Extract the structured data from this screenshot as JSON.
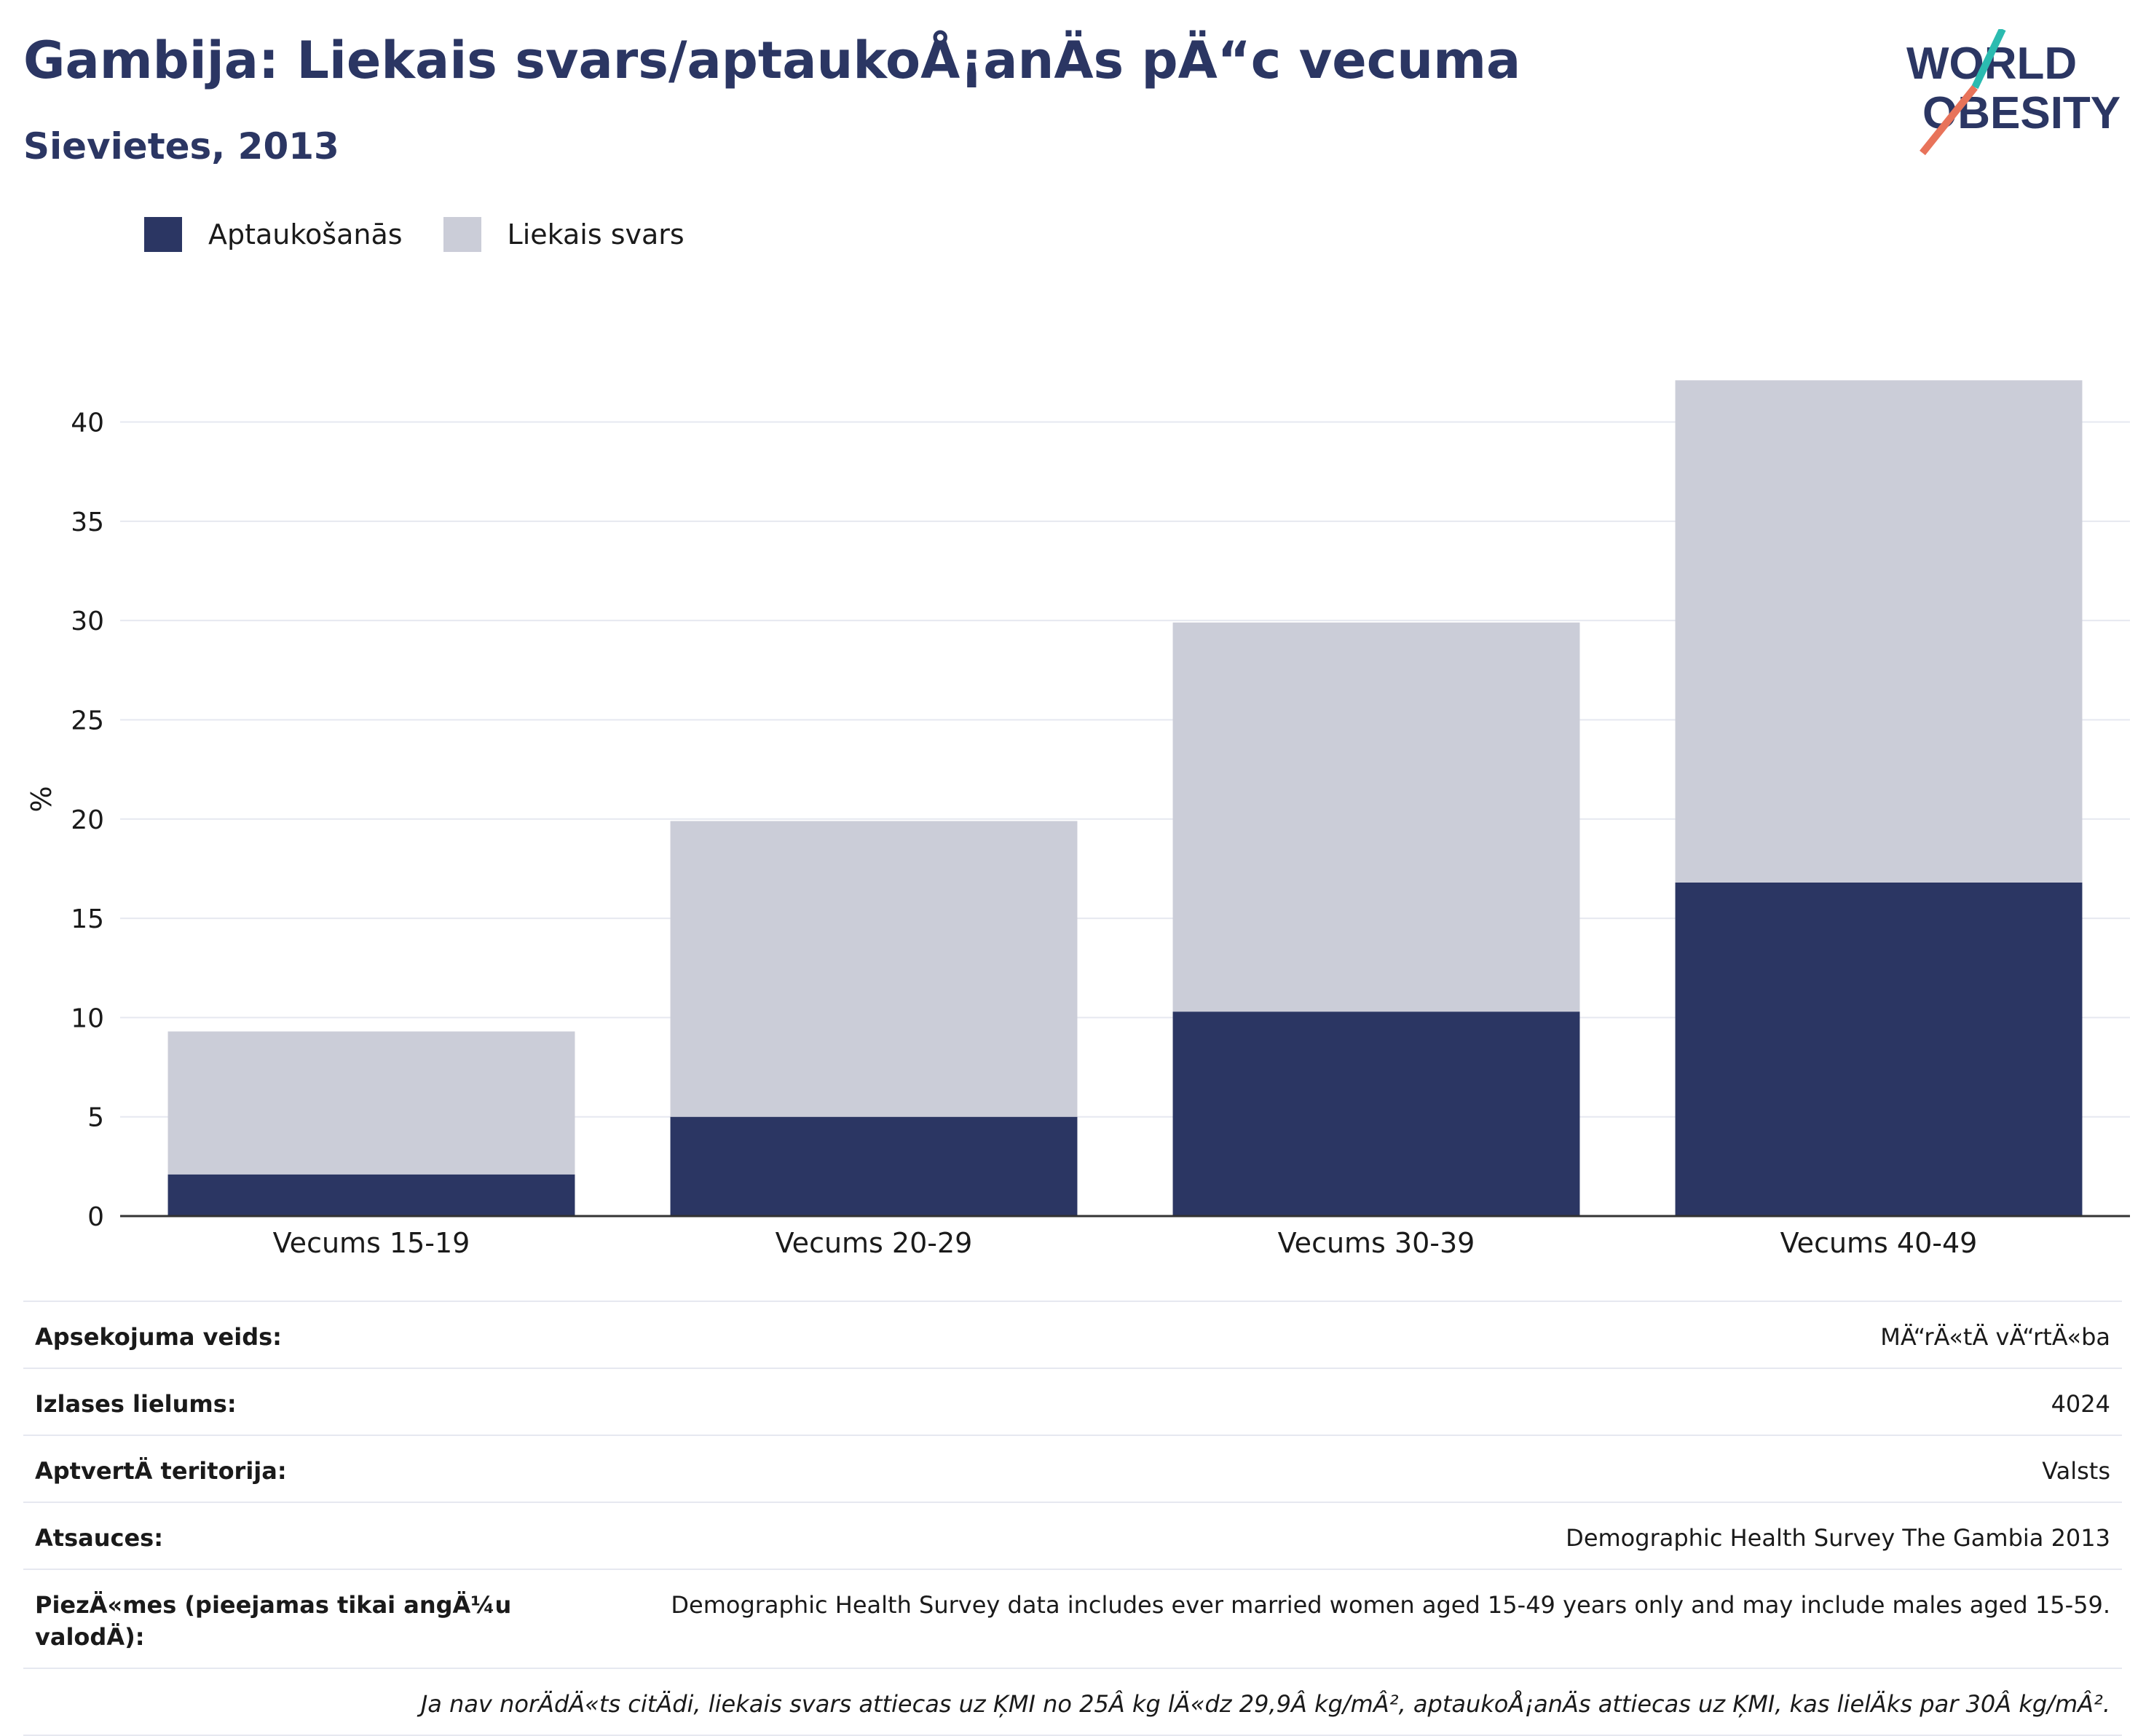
{
  "header": {
    "title": "Gambija: Liekais svars/aptaukoÅ¡anÄs pÄ“c vecuma",
    "subtitle": "Sievietes, 2013"
  },
  "logo": {
    "line1": "WORLD",
    "line2": "OBESITY",
    "accent_colors": [
      "#2bbbb0",
      "#e8735a"
    ],
    "text_color": "#2b3663"
  },
  "legend": [
    {
      "label": "Aptaukošanās",
      "color": "#2b3663"
    },
    {
      "label": "Liekais svars",
      "color": "#cbcdd8"
    }
  ],
  "chart_data": {
    "type": "bar",
    "stacked": true,
    "title": "Gambija: Liekais svars/aptaukoÅ¡anÄs pÄ“c vecuma",
    "subtitle": "Sievietes, 2013",
    "ylabel": "%",
    "xlabel": "",
    "ylim": [
      0,
      42
    ],
    "yticks": [
      0,
      5,
      10,
      15,
      20,
      25,
      30,
      35,
      40
    ],
    "grid": true,
    "legend_position": "top-left",
    "categories": [
      "Vecums 15-19",
      "Vecums 20-29",
      "Vecums 30-39",
      "Vecums 40-49"
    ],
    "series": [
      {
        "name": "Aptaukošanās",
        "color": "#2b3663",
        "values": [
          2.1,
          5.0,
          10.3,
          16.8
        ]
      },
      {
        "name": "Liekais svars",
        "color": "#cbcdd8",
        "values": [
          7.2,
          14.9,
          19.6,
          25.3
        ]
      }
    ]
  },
  "info": {
    "rows": [
      {
        "key": "Apsekojuma veids:",
        "value": "MÄ“rÄ«tÄ vÄ“rtÄ«ba"
      },
      {
        "key": "Izlases lielums:",
        "value": "4024"
      },
      {
        "key": "AptvertÄ teritorija:",
        "value": "Valsts"
      },
      {
        "key": "Atsauces:",
        "value": "Demographic Health Survey The Gambia 2013"
      },
      {
        "key": "PiezÄ«mes (pieejamas tikai angÄ¼u valodÄ):",
        "value": "Demographic Health Survey data includes ever married women aged 15-49 years only and may include males aged 15-59."
      }
    ],
    "footnote": "Ja nav norÄdÄ«ts citÄdi, liekais svars attiecas uz ĶMI no 25Â kg lÄ«dz 29,9Â kg/mÂ², aptaukoÅ¡anÄs attiecas uz ĶMI, kas lielÄks par 30Â kg/mÂ²."
  }
}
